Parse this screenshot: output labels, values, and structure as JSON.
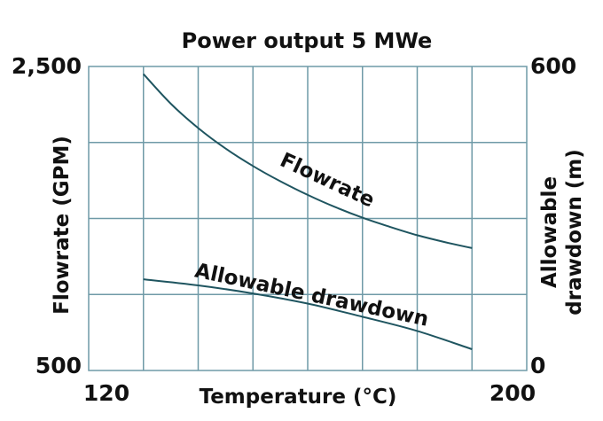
{
  "chart_data": {
    "type": "line",
    "title": "Power output 5 MWe",
    "xlabel": "Temperature (°C)",
    "ylabel_left": "Flowrate (GPM)",
    "ylabel_right": "Allowable drawdown (m)",
    "ylabel_right_lines": [
      "Allowable",
      "drawdown (m)"
    ],
    "xlim": [
      120,
      200
    ],
    "ylim_left": [
      500,
      2500
    ],
    "ylim_right": [
      0,
      600
    ],
    "x_tick_labels": [
      "120",
      "200"
    ],
    "y_left_tick_labels": [
      "2,500",
      "500"
    ],
    "y_right_tick_labels": [
      "600",
      "0"
    ],
    "grid": true,
    "series": [
      {
        "name": "Flowrate",
        "axis": "left",
        "color": "#1f5560",
        "x": [
          130,
          135,
          140,
          145,
          150,
          155,
          160,
          165,
          170,
          175,
          180,
          185,
          190
        ],
        "y": [
          2450,
          2255,
          2095,
          1960,
          1845,
          1745,
          1655,
          1575,
          1505,
          1445,
          1390,
          1345,
          1305
        ]
      },
      {
        "name": "Allowable drawdown",
        "axis": "right",
        "color": "#1f5560",
        "x": [
          130,
          140,
          150,
          160,
          170,
          180,
          190
        ],
        "y": [
          180,
          168,
          152,
          132,
          106,
          78,
          42
        ]
      }
    ]
  }
}
